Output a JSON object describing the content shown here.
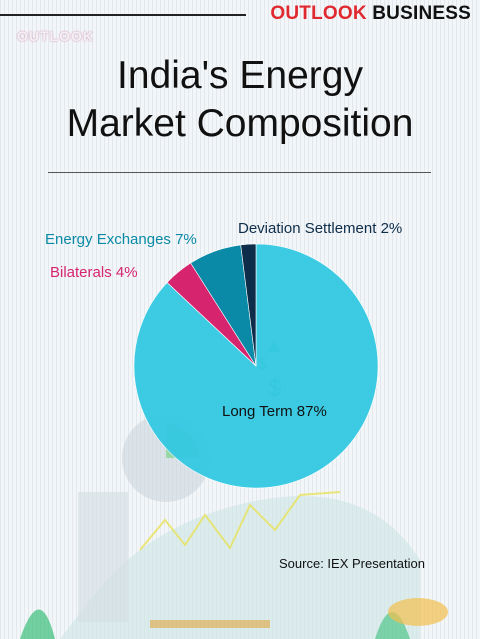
{
  "header": {
    "brand_red": "OUTLOOK",
    "brand_black": "BUSINESS",
    "sub_logo": "OUTLOOK"
  },
  "title_line1": "India's Energy",
  "title_line2": "Market Composition",
  "source": "Source: IEX Presentation",
  "colors": {
    "long_term": "#34c9e3",
    "bilaterals": "#d6246f",
    "energy_exchanges": "#0a8aa6",
    "deviation": "#0d2d4a",
    "brand_red": "#e0282e"
  },
  "chart_data": {
    "type": "pie",
    "title": "India's Energy Market Composition",
    "slices": [
      {
        "name": "Long Term",
        "value": 87,
        "label": "Long Term 87%",
        "color": "#34c9e3"
      },
      {
        "name": "Bilaterals",
        "value": 4,
        "label": "Bilaterals 4%",
        "color": "#d6246f"
      },
      {
        "name": "Energy Exchanges",
        "value": 7,
        "label": "Energy Exchanges 7%",
        "color": "#0a8aa6"
      },
      {
        "name": "Deviation Settlement",
        "value": 2,
        "label": "Deviation Settlement 2%",
        "color": "#0d2d4a"
      }
    ],
    "unit": "%"
  }
}
